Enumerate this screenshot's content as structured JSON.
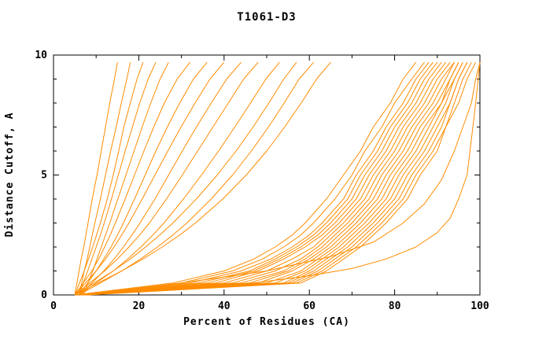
{
  "chart_data": {
    "type": "line",
    "title": "T1061-D3",
    "xlabel": "Percent of Residues (CA)",
    "ylabel": "Distance Cutoff, A",
    "xlim": [
      0,
      100
    ],
    "ylim": [
      0,
      10
    ],
    "x_ticks": [
      0,
      20,
      40,
      60,
      80,
      100
    ],
    "y_ticks": [
      0,
      5,
      10
    ],
    "x_minor_step": 10,
    "y_minor_step": 1,
    "grid": false,
    "legend": "none",
    "background": "#ffffff",
    "axis_color": "#000000",
    "line_color": "#ff8c00",
    "y_grid": [
      0,
      0.5,
      1,
      1.5,
      2,
      2.5,
      3,
      4,
      5,
      6,
      7,
      8,
      9,
      9.7
    ],
    "series": [
      {
        "x": [
          5,
          5.5,
          6,
          6.5,
          7.1,
          7.6,
          8.1,
          9.1,
          10.2,
          11.2,
          12.2,
          13.2,
          14.3,
          15
        ]
      },
      {
        "x": [
          6,
          6.6,
          7.2,
          7.9,
          8.5,
          9.1,
          9.7,
          11,
          12.2,
          13.4,
          14.7,
          15.9,
          17.2,
          18
        ]
      },
      {
        "x": [
          5,
          6.1,
          7.2,
          8.2,
          9.2,
          10.1,
          11,
          12.6,
          14,
          15.3,
          16.5,
          18,
          19.6,
          21
        ]
      },
      {
        "x": [
          6,
          7,
          8,
          9,
          10,
          11,
          11.9,
          13.6,
          15.2,
          16.8,
          18.5,
          20.2,
          22.2,
          24
        ]
      },
      {
        "x": [
          7,
          8.1,
          9.2,
          10.2,
          11.2,
          12.2,
          13.2,
          15.1,
          17,
          18.9,
          20.8,
          22.8,
          25,
          27
        ]
      },
      {
        "x": [
          5,
          7,
          9,
          10.6,
          12,
          13.3,
          14.5,
          16.8,
          19,
          21.2,
          23.5,
          26,
          29,
          32
        ]
      },
      {
        "x": [
          6,
          8,
          10,
          11.8,
          13.5,
          15,
          16.4,
          19,
          21.5,
          24,
          26.7,
          29.6,
          32.8,
          36
        ]
      },
      {
        "x": [
          5,
          7.5,
          10,
          12.2,
          14.2,
          16,
          17.7,
          20.8,
          23.8,
          26.8,
          29.9,
          33.2,
          36.7,
          40
        ]
      },
      {
        "x": [
          6,
          9,
          11.8,
          14.2,
          16.4,
          18.4,
          20.3,
          23.8,
          27,
          30.2,
          33.5,
          37,
          40.6,
          44
        ]
      },
      {
        "x": [
          5,
          8.5,
          12,
          15,
          17.7,
          20.2,
          22.5,
          26.5,
          30.2,
          33.8,
          37.4,
          41,
          44.6,
          48
        ]
      },
      {
        "x": [
          6,
          10,
          14,
          17.4,
          20.5,
          23.3,
          25.9,
          30.5,
          34.7,
          38.7,
          42.5,
          46.2,
          49.8,
          53
        ]
      },
      {
        "x": [
          5,
          9.5,
          14,
          18,
          21.6,
          24.9,
          28,
          33.5,
          38.4,
          42.8,
          46.8,
          50.5,
          54,
          57
        ]
      },
      {
        "x": [
          6,
          11,
          16,
          20.4,
          24.4,
          28,
          31.3,
          37,
          42,
          46.4,
          50.4,
          54.1,
          57.6,
          61
        ]
      },
      {
        "x": [
          5,
          10.5,
          16,
          21,
          25.5,
          29.6,
          33.3,
          39.7,
          45.2,
          50,
          54.2,
          58.1,
          61.7,
          65
        ]
      },
      {
        "x": [
          5,
          28,
          40,
          47,
          52,
          56,
          59,
          64,
          68,
          72,
          75,
          79,
          82,
          85
        ]
      },
      {
        "x": [
          6,
          30,
          42,
          49,
          54,
          58,
          61,
          66,
          70,
          73,
          77,
          80,
          84,
          87
        ]
      },
      {
        "x": [
          5,
          32,
          44,
          51,
          56,
          60,
          63,
          68,
          71,
          75,
          78,
          82,
          85,
          88
        ]
      },
      {
        "x": [
          6,
          34,
          46,
          52,
          57,
          61,
          64,
          69,
          72,
          76,
          79,
          83,
          86,
          89
        ]
      },
      {
        "x": [
          5,
          36,
          47,
          53,
          58,
          62,
          65,
          70,
          73,
          77,
          80,
          84,
          87,
          90
        ]
      },
      {
        "x": [
          6,
          38,
          48,
          54,
          59,
          63,
          66,
          71,
          74,
          78,
          81,
          85,
          88,
          91
        ]
      },
      {
        "x": [
          5,
          40,
          50,
          56,
          61,
          64,
          67,
          72,
          75,
          79,
          82,
          86,
          89,
          92
        ]
      },
      {
        "x": [
          6,
          42,
          52,
          58,
          62,
          65,
          68,
          73,
          76,
          80,
          83,
          87,
          90,
          93
        ]
      },
      {
        "x": [
          5,
          44,
          54,
          59,
          63,
          66,
          69,
          74,
          77,
          81,
          84,
          88,
          91,
          94
        ]
      },
      {
        "x": [
          6,
          46,
          55,
          60,
          64,
          67,
          70,
          75,
          78,
          82,
          85,
          89,
          92,
          94
        ]
      },
      {
        "x": [
          5,
          48,
          56,
          61,
          65,
          68,
          71,
          76,
          79,
          83,
          86,
          90,
          93,
          95
        ]
      },
      {
        "x": [
          6,
          50,
          58,
          62,
          66,
          69,
          72,
          77,
          80,
          84,
          87,
          91,
          93,
          95
        ]
      },
      {
        "x": [
          7,
          52,
          59,
          63,
          67,
          70,
          73,
          78,
          81,
          85,
          88,
          91,
          94,
          96
        ]
      },
      {
        "x": [
          6,
          54,
          60,
          64,
          68,
          71,
          74,
          79,
          82,
          86,
          89,
          92,
          94,
          96
        ]
      },
      {
        "x": [
          7,
          55,
          61,
          65,
          69,
          72,
          75,
          80,
          83,
          87,
          90,
          93,
          95,
          97
        ]
      },
      {
        "x": [
          6,
          56,
          62,
          66,
          70,
          73,
          76,
          81,
          84,
          88,
          91,
          93,
          95,
          97
        ]
      },
      {
        "x": [
          7,
          57,
          63,
          67,
          71,
          74,
          77,
          82,
          85,
          89,
          92,
          94,
          96,
          98
        ]
      },
      {
        "x": [
          8,
          58,
          64,
          68,
          72,
          75,
          78,
          83,
          86,
          90,
          92,
          95,
          97,
          99
        ]
      },
      {
        "points": [
          [
            8,
            0
          ],
          [
            20,
            0.2
          ],
          [
            35,
            0.35
          ],
          [
            47,
            0.5
          ],
          [
            60,
            0.8
          ],
          [
            70,
            1.1
          ],
          [
            78,
            1.5
          ],
          [
            85,
            2.0
          ],
          [
            90,
            2.6
          ],
          [
            93,
            3.2
          ],
          [
            95,
            4.0
          ],
          [
            97,
            5.0
          ],
          [
            98,
            6.5
          ],
          [
            99,
            8.0
          ],
          [
            100,
            9.7
          ]
        ]
      },
      {
        "points": [
          [
            7,
            0
          ],
          [
            30,
            0.5
          ],
          [
            50,
            1.0
          ],
          [
            65,
            1.6
          ],
          [
            75,
            2.2
          ],
          [
            82,
            3.0
          ],
          [
            87,
            3.8
          ],
          [
            91,
            4.8
          ],
          [
            94,
            6.0
          ],
          [
            96,
            7.0
          ],
          [
            98,
            8.0
          ],
          [
            99,
            9.0
          ],
          [
            100,
            9.7
          ]
        ]
      }
    ]
  }
}
